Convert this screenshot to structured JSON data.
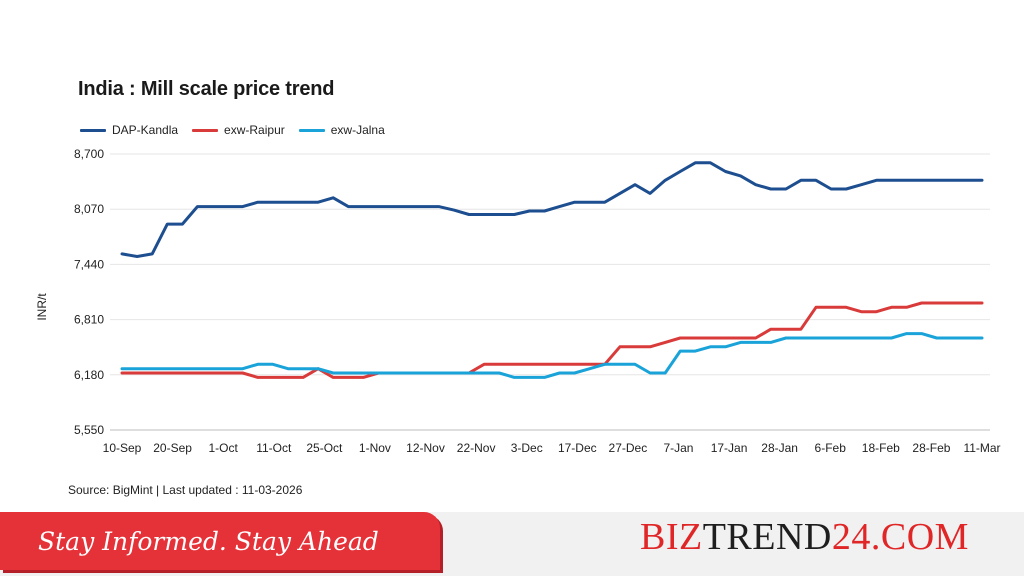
{
  "chart_data": {
    "type": "line",
    "title": "India : Mill scale price trend",
    "ylabel": "INR/t",
    "xlabel": "",
    "ylim": [
      5550,
      8700
    ],
    "yticks": [
      5550,
      6180,
      6810,
      7440,
      8070,
      8700
    ],
    "ytick_labels": [
      "5,550",
      "6,180",
      "6,810",
      "7,440",
      "8,070",
      "8,700"
    ],
    "x_tick_labels": [
      "10-Sep",
      "20-Sep",
      "1-Oct",
      "11-Oct",
      "25-Oct",
      "1-Nov",
      "12-Nov",
      "22-Nov",
      "3-Dec",
      "17-Dec",
      "27-Dec",
      "7-Jan",
      "17-Jan",
      "28-Jan",
      "6-Feb",
      "18-Feb",
      "28-Feb",
      "11-Mar"
    ],
    "grid": "horizontal",
    "legend_position": "top-left",
    "points_count": 58,
    "series": [
      {
        "name": "DAP-Kandla",
        "color": "#1d4e8f",
        "values": [
          7560,
          7530,
          7560,
          7900,
          7900,
          8100,
          8100,
          8100,
          8100,
          8150,
          8150,
          8150,
          8150,
          8150,
          8200,
          8100,
          8100,
          8100,
          8100,
          8100,
          8100,
          8100,
          8060,
          8010,
          8010,
          8010,
          8010,
          8050,
          8050,
          8100,
          8150,
          8150,
          8150,
          8250,
          8350,
          8250,
          8400,
          8500,
          8600,
          8600,
          8500,
          8450,
          8350,
          8300,
          8300,
          8400,
          8400,
          8300,
          8300,
          8350,
          8400,
          8400,
          8400,
          8400,
          8400,
          8400,
          8400,
          8400
        ]
      },
      {
        "name": "exw-Raipur",
        "color": "#d93a3a",
        "values": [
          6200,
          6200,
          6200,
          6200,
          6200,
          6200,
          6200,
          6200,
          6200,
          6150,
          6150,
          6150,
          6150,
          6250,
          6150,
          6150,
          6150,
          6200,
          6200,
          6200,
          6200,
          6200,
          6200,
          6200,
          6300,
          6300,
          6300,
          6300,
          6300,
          6300,
          6300,
          6300,
          6300,
          6500,
          6500,
          6500,
          6550,
          6600,
          6600,
          6600,
          6600,
          6600,
          6600,
          6700,
          6700,
          6700,
          6950,
          6950,
          6950,
          6900,
          6900,
          6950,
          6950,
          7000,
          7000,
          7000,
          7000,
          7000
        ]
      },
      {
        "name": "exw-Jalna",
        "color": "#1aa3d9",
        "values": [
          6250,
          6250,
          6250,
          6250,
          6250,
          6250,
          6250,
          6250,
          6250,
          6300,
          6300,
          6250,
          6250,
          6250,
          6200,
          6200,
          6200,
          6200,
          6200,
          6200,
          6200,
          6200,
          6200,
          6200,
          6200,
          6200,
          6150,
          6150,
          6150,
          6200,
          6200,
          6250,
          6300,
          6300,
          6300,
          6200,
          6200,
          6450,
          6450,
          6500,
          6500,
          6550,
          6550,
          6550,
          6600,
          6600,
          6600,
          6600,
          6600,
          6600,
          6600,
          6600,
          6650,
          6650,
          6600,
          6600,
          6600,
          6600
        ]
      }
    ]
  },
  "source": "Source: BigMint | Last updated : 11-03-2026",
  "banner": {
    "tagline": "Stay Informed. Stay Ahead",
    "brand_red": "BIZ",
    "brand_dark": "TREND",
    "brand_red2": "24.COM",
    "tagline_bg": "#e53138",
    "brand_color": "#e02626"
  }
}
